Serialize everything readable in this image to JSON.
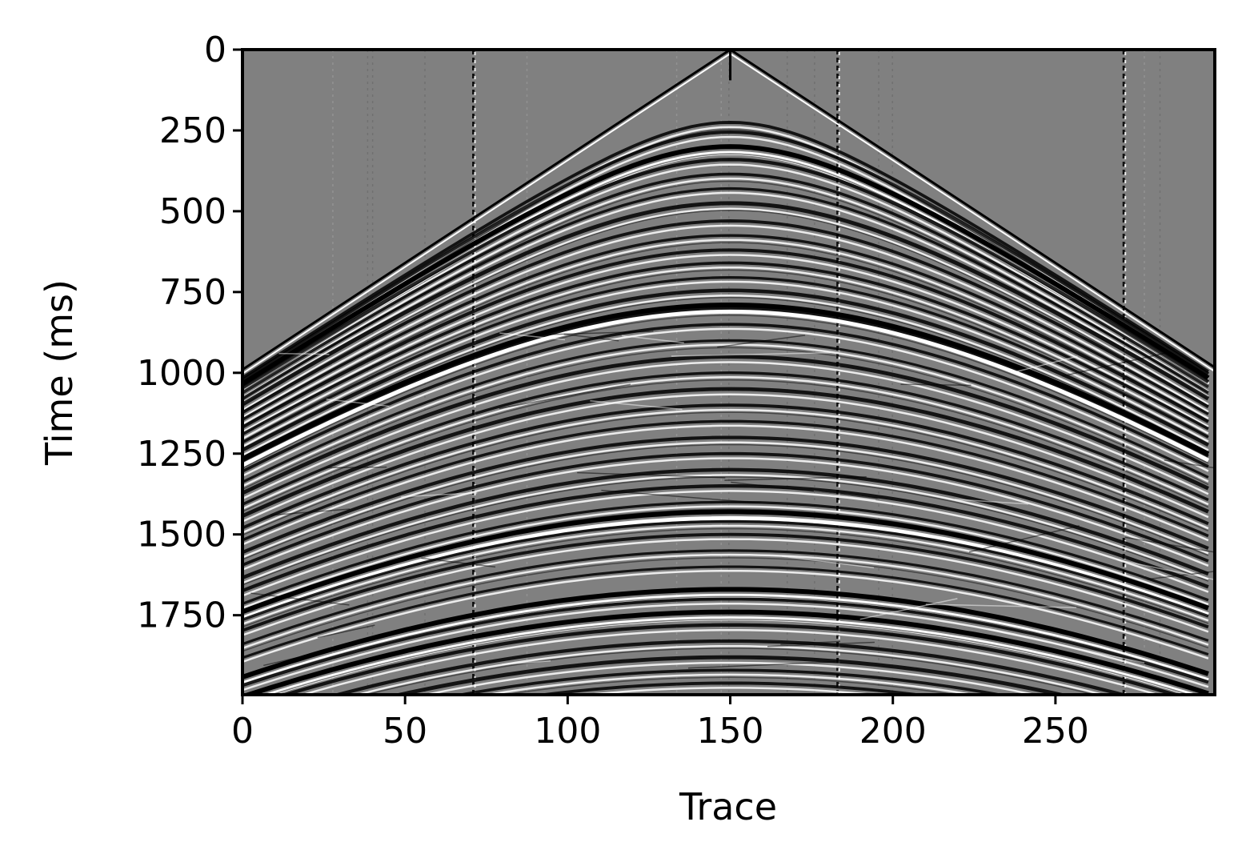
{
  "chart_data": {
    "type": "heatmap",
    "subtype": "seismic-shot-gather",
    "colormap": "gray",
    "background_color": "#808080",
    "xlabel": "Trace",
    "ylabel": "Time (ms)",
    "xlim": [
      0,
      299
    ],
    "ylim": [
      1996,
      0
    ],
    "y_inverted": true,
    "grid": false,
    "x_ticks": [
      0,
      50,
      100,
      150,
      200,
      250
    ],
    "x_tick_labels": [
      "0",
      "50",
      "100",
      "150",
      "200",
      "250"
    ],
    "y_ticks": [
      0,
      250,
      500,
      750,
      1000,
      1250,
      1500,
      1750
    ],
    "y_tick_labels": [
      "0",
      "250",
      "500",
      "750",
      "1000",
      "1250",
      "1500",
      "1750"
    ],
    "source_trace": 150,
    "direct_arrival": {
      "apex_time_ms": 0,
      "edge_time_ms": 990
    },
    "reflection_apex_times_ms": [
      225,
      255,
      300,
      340,
      385,
      430,
      475,
      530,
      575,
      620,
      660,
      705,
      745,
      790,
      800,
      850,
      900,
      950,
      1000,
      1050,
      1100,
      1150,
      1200,
      1250,
      1300,
      1350,
      1400,
      1430,
      1460,
      1500,
      1550,
      1600,
      1670,
      1700,
      1740,
      1780,
      1830,
      1880,
      1920,
      1960
    ],
    "strong_reflection_times_ms": [
      300,
      790,
      1430,
      1670,
      1740
    ],
    "dead_traces": [
      71,
      183,
      271
    ]
  }
}
